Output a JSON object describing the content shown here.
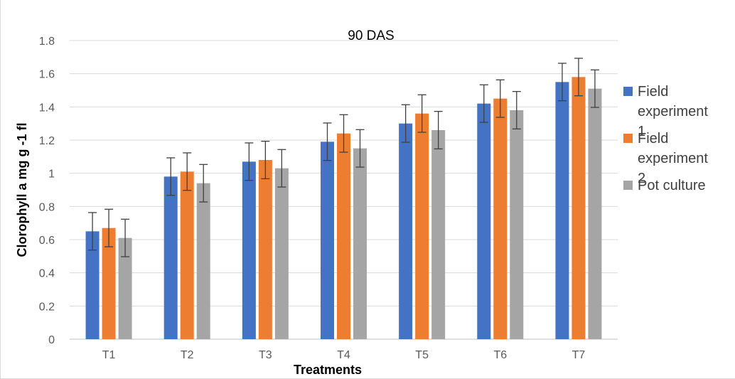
{
  "chart_data": {
    "type": "bar",
    "title": "90 DAS",
    "xlabel": "Treatments",
    "ylabel": "Clorophyll a mg g -1 fl",
    "ylim": [
      0,
      1.8
    ],
    "yticks": [
      "0",
      "0.2",
      "0.4",
      "0.6",
      "0.8",
      "1",
      "1.2",
      "1.4",
      "1.6",
      "1.8"
    ],
    "categories": [
      "T1",
      "T2",
      "T3",
      "T4",
      "T5",
      "T6",
      "T7"
    ],
    "error_bar": 0.113,
    "grid": true,
    "legend_position": "right",
    "series": [
      {
        "name": "Field experiment 1",
        "legend_lines": [
          "Field",
          "experiment",
          "1"
        ],
        "color": "#4472c4",
        "values": [
          0.65,
          0.98,
          1.07,
          1.19,
          1.3,
          1.42,
          1.55
        ]
      },
      {
        "name": "Field experiment 2",
        "legend_lines": [
          "Field",
          "experiment",
          "2"
        ],
        "color": "#ed7d31",
        "values": [
          0.67,
          1.01,
          1.08,
          1.24,
          1.36,
          1.45,
          1.58
        ]
      },
      {
        "name": "Pot culture",
        "legend_lines": [
          "Pot culture"
        ],
        "color": "#a5a5a5",
        "values": [
          0.61,
          0.94,
          1.03,
          1.15,
          1.26,
          1.38,
          1.51
        ]
      }
    ]
  }
}
